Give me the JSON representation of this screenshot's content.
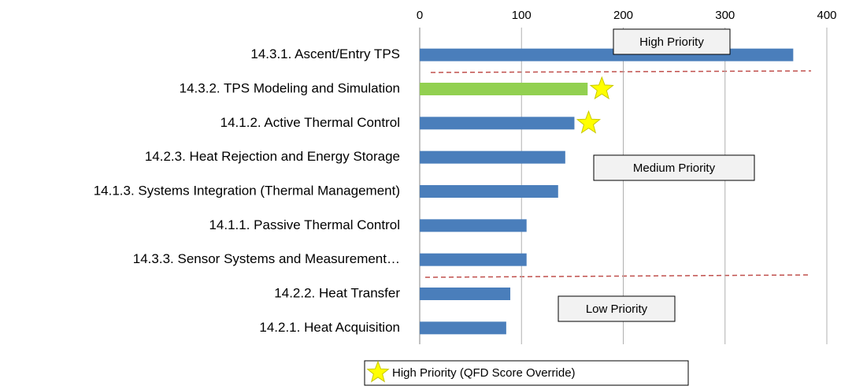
{
  "chart_data": {
    "type": "bar",
    "orientation": "horizontal",
    "categories": [
      "14.3.1. Ascent/Entry TPS",
      "14.3.2. TPS Modeling and Simulation",
      "14.1.2. Active Thermal Control",
      "14.2.3. Heat Rejection and Energy Storage",
      "14.1.3. Systems Integration (Thermal Management)",
      "14.1.1. Passive Thermal Control",
      "14.3.3. Sensor Systems and Measurement…",
      "14.2.2. Heat Transfer",
      "14.2.1. Heat Acquisition"
    ],
    "values": [
      367,
      165,
      152,
      143,
      136,
      105,
      105,
      89,
      85
    ],
    "colors": [
      "#4a7ebb",
      "#92d050",
      "#4a7ebb",
      "#4a7ebb",
      "#4a7ebb",
      "#4a7ebb",
      "#4a7ebb",
      "#4a7ebb",
      "#4a7ebb"
    ],
    "override": [
      false,
      true,
      true,
      false,
      false,
      false,
      false,
      false,
      false
    ],
    "override_color": "#ffff00",
    "xlim": [
      0,
      400
    ],
    "xticks": [
      0,
      100,
      200,
      300,
      400
    ],
    "grid": true,
    "annotations": [
      "High Priority",
      "Medium Priority",
      "Low Priority"
    ],
    "legend": "High Priority (QFD Score Override)"
  }
}
